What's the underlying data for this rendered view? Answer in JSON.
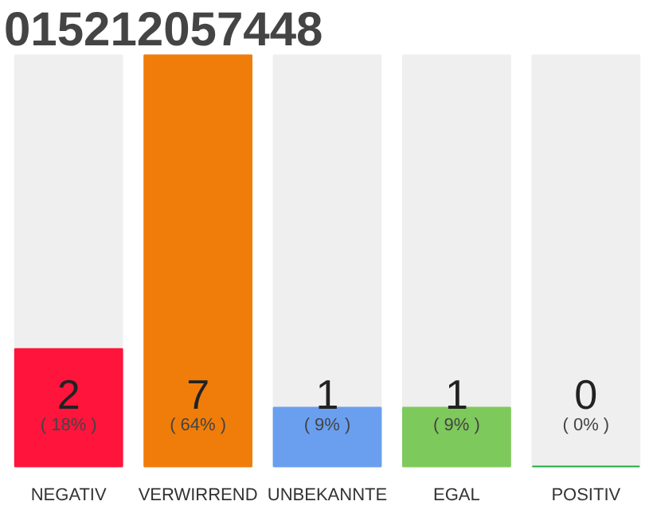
{
  "chart_data": {
    "type": "bar",
    "title": "015212057448",
    "categories": [
      "NEGATIV",
      "VERWIRREND",
      "UNBEKANNTE",
      "EGAL",
      "POSITIV"
    ],
    "values": [
      2,
      7,
      1,
      1,
      0
    ],
    "colors": [
      "#ff143c",
      "#f07d0a",
      "#6a9ff0",
      "#7ec95c",
      "#22aa44"
    ],
    "value_labels": [
      "2",
      "7",
      "1",
      "1",
      "0"
    ],
    "annotations": [
      "( 18% )",
      "( 64% )",
      "( 9% )",
      "( 9% )",
      "( 0% )"
    ],
    "grid": false
  }
}
